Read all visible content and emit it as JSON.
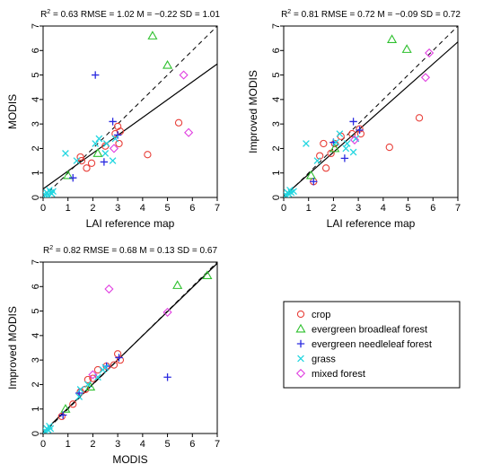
{
  "legend": {
    "items": [
      {
        "name": "crop",
        "color": "#e8403a",
        "marker": "circle"
      },
      {
        "name": "evergreen broadleaf forest",
        "color": "#2ec02e",
        "marker": "triangle"
      },
      {
        "name": "evergreen needleleaf forest",
        "color": "#2a2ae0",
        "marker": "plus"
      },
      {
        "name": "grass",
        "color": "#22d6e0",
        "marker": "cross"
      },
      {
        "name": "mixed forest",
        "color": "#e040e0",
        "marker": "diamond"
      }
    ]
  },
  "chart_data": [
    {
      "type": "scatter",
      "stats": {
        "r2": "0.63",
        "rmse": "1.02",
        "m": "−0.22",
        "sd": "1.01"
      },
      "xlabel": "LAI reference map",
      "ylabel": "MODIS",
      "xlim": [
        0,
        7
      ],
      "ylim": [
        0,
        7
      ],
      "xticks": [
        0,
        1,
        2,
        3,
        4,
        5,
        6,
        7
      ],
      "yticks": [
        0,
        1,
        2,
        3,
        4,
        5,
        6,
        7
      ],
      "identity_line": true,
      "fit_line": [
        [
          0,
          0.35
        ],
        [
          7,
          5.45
        ]
      ],
      "series": [
        {
          "name": "crop",
          "points": [
            [
              1.5,
              1.65
            ],
            [
              1.55,
              1.5
            ],
            [
              1.75,
              1.2
            ],
            [
              1.95,
              1.4
            ],
            [
              2.5,
              2.1
            ],
            [
              2.9,
              2.6
            ],
            [
              3.0,
              2.9
            ],
            [
              3.05,
              2.2
            ],
            [
              3.1,
              2.7
            ],
            [
              4.2,
              1.75
            ],
            [
              5.45,
              3.05
            ]
          ]
        },
        {
          "name": "evergreen broadleaf forest",
          "points": [
            [
              1.0,
              0.9
            ],
            [
              2.2,
              1.8
            ],
            [
              4.4,
              6.6
            ],
            [
              5.0,
              5.4
            ]
          ]
        },
        {
          "name": "evergreen needleleaf forest",
          "points": [
            [
              1.2,
              0.8
            ],
            [
              2.1,
              5.0
            ],
            [
              2.45,
              1.45
            ],
            [
              2.8,
              3.1
            ],
            [
              3.0,
              2.55
            ]
          ]
        },
        {
          "name": "grass",
          "points": [
            [
              0.1,
              0.1
            ],
            [
              0.15,
              0.2
            ],
            [
              0.2,
              0.1
            ],
            [
              0.25,
              0.3
            ],
            [
              0.3,
              0.2
            ],
            [
              0.35,
              0.15
            ],
            [
              0.4,
              0.25
            ],
            [
              0.9,
              1.8
            ],
            [
              1.35,
              1.5
            ],
            [
              2.1,
              2.2
            ],
            [
              2.25,
              2.4
            ],
            [
              2.5,
              1.8
            ],
            [
              2.55,
              2.2
            ],
            [
              2.8,
              1.5
            ],
            [
              2.9,
              2.4
            ]
          ]
        },
        {
          "name": "mixed forest",
          "points": [
            [
              2.85,
              2.0
            ],
            [
              5.65,
              5.0
            ],
            [
              5.85,
              2.65
            ]
          ]
        }
      ]
    },
    {
      "type": "scatter",
      "stats": {
        "r2": "0.81",
        "rmse": "0.72",
        "m": "−0.09",
        "sd": "0.72"
      },
      "xlabel": "LAI reference map",
      "ylabel": "Improved MODIS",
      "xlim": [
        0,
        7
      ],
      "ylim": [
        0,
        7
      ],
      "xticks": [
        0,
        1,
        2,
        3,
        4,
        5,
        6,
        7
      ],
      "yticks": [
        0,
        1,
        2,
        3,
        4,
        5,
        6,
        7
      ],
      "identity_line": true,
      "fit_line": [
        [
          0,
          0.05
        ],
        [
          7,
          6.35
        ]
      ],
      "series": [
        {
          "name": "crop",
          "points": [
            [
              1.2,
              0.65
            ],
            [
              1.45,
              1.7
            ],
            [
              1.6,
              2.2
            ],
            [
              1.7,
              1.2
            ],
            [
              1.9,
              1.8
            ],
            [
              2.05,
              2.2
            ],
            [
              2.3,
              2.5
            ],
            [
              2.75,
              2.6
            ],
            [
              3.05,
              2.8
            ],
            [
              3.1,
              2.6
            ],
            [
              4.25,
              2.05
            ],
            [
              5.45,
              3.25
            ]
          ]
        },
        {
          "name": "evergreen broadleaf forest",
          "points": [
            [
              1.1,
              0.9
            ],
            [
              2.05,
              2.0
            ],
            [
              4.35,
              6.45
            ],
            [
              4.95,
              6.05
            ]
          ]
        },
        {
          "name": "evergreen needleleaf forest",
          "points": [
            [
              1.2,
              0.65
            ],
            [
              2.0,
              2.25
            ],
            [
              2.45,
              1.6
            ],
            [
              2.8,
              3.1
            ],
            [
              3.05,
              2.75
            ]
          ]
        },
        {
          "name": "grass",
          "points": [
            [
              0.1,
              0.1
            ],
            [
              0.15,
              0.2
            ],
            [
              0.2,
              0.15
            ],
            [
              0.25,
              0.3
            ],
            [
              0.3,
              0.2
            ],
            [
              0.4,
              0.25
            ],
            [
              0.9,
              2.2
            ],
            [
              1.35,
              1.5
            ],
            [
              2.1,
              2.25
            ],
            [
              2.25,
              2.6
            ],
            [
              2.5,
              2.0
            ],
            [
              2.55,
              2.2
            ],
            [
              2.8,
              1.85
            ],
            [
              2.9,
              2.4
            ]
          ]
        },
        {
          "name": "mixed forest",
          "points": [
            [
              2.85,
              2.35
            ],
            [
              5.7,
              4.9
            ],
            [
              5.85,
              5.9
            ]
          ]
        }
      ]
    },
    {
      "type": "scatter",
      "stats": {
        "r2": "0.82",
        "rmse": "0.68",
        "m": "0.13",
        "sd": "0.67"
      },
      "xlabel": "MODIS",
      "ylabel": "Improved MODIS",
      "xlim": [
        0,
        7
      ],
      "ylim": [
        0,
        7
      ],
      "xticks": [
        0,
        1,
        2,
        3,
        4,
        5,
        6,
        7
      ],
      "yticks": [
        0,
        1,
        2,
        3,
        4,
        5,
        6,
        7
      ],
      "identity_line": true,
      "fit_line": [
        [
          0,
          0.05
        ],
        [
          7,
          6.95
        ]
      ],
      "series": [
        {
          "name": "crop",
          "points": [
            [
              0.75,
              0.7
            ],
            [
              1.2,
              1.2
            ],
            [
              1.5,
              1.7
            ],
            [
              1.7,
              1.8
            ],
            [
              1.8,
              2.2
            ],
            [
              2.0,
              2.25
            ],
            [
              2.2,
              2.6
            ],
            [
              2.55,
              2.75
            ],
            [
              2.85,
              2.8
            ],
            [
              3.0,
              3.25
            ],
            [
              3.1,
              3.0
            ]
          ]
        },
        {
          "name": "evergreen broadleaf forest",
          "points": [
            [
              0.9,
              1.0
            ],
            [
              1.9,
              1.9
            ],
            [
              5.4,
              6.05
            ],
            [
              6.6,
              6.45
            ]
          ]
        },
        {
          "name": "evergreen needleleaf forest",
          "points": [
            [
              0.8,
              0.75
            ],
            [
              1.45,
              1.65
            ],
            [
              2.55,
              2.75
            ],
            [
              3.05,
              3.1
            ],
            [
              5.0,
              2.3
            ]
          ]
        },
        {
          "name": "grass",
          "points": [
            [
              0.1,
              0.1
            ],
            [
              0.15,
              0.2
            ],
            [
              0.2,
              0.15
            ],
            [
              0.25,
              0.3
            ],
            [
              0.3,
              0.2
            ],
            [
              1.45,
              1.5
            ],
            [
              1.5,
              1.8
            ],
            [
              1.8,
              2.0
            ],
            [
              2.2,
              2.3
            ],
            [
              2.4,
              2.6
            ],
            [
              2.5,
              2.7
            ]
          ]
        },
        {
          "name": "mixed forest",
          "points": [
            [
              2.0,
              2.4
            ],
            [
              2.65,
              5.9
            ],
            [
              5.0,
              4.95
            ]
          ]
        }
      ]
    }
  ]
}
